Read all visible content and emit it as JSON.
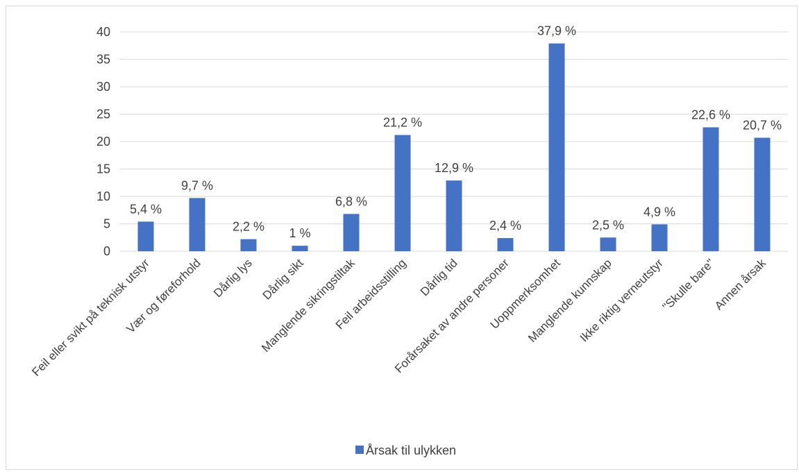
{
  "chart_data": {
    "type": "bar",
    "categories": [
      "Feil eller svikt på teknisk utstyr",
      "Vær og føreforhold",
      "Dårlig lys",
      "Dårlig sikt",
      "Manglende sikringstiltak",
      "Feil arbeidsstilling",
      "Dårlig tid",
      "Forårsaket av andre personer",
      "Uoppmerksomhet",
      "Manglende kunnskap",
      "Ikke riktig verneutstyr",
      "\"Skulle bare\"",
      "Annen årsak"
    ],
    "series": [
      {
        "name": "Årsak til ulykken",
        "values": [
          5.4,
          9.7,
          2.2,
          1,
          6.8,
          21.2,
          12.9,
          2.4,
          37.9,
          2.5,
          4.9,
          22.6,
          20.7
        ],
        "labels": [
          "5,4 %",
          "9,7 %",
          "2,2 %",
          "1 %",
          "6,8 %",
          "21,2 %",
          "12,9 %",
          "2,4 %",
          "37,9 %",
          "2,5 %",
          "4,9 %",
          "22,6 %",
          "20,7 %"
        ]
      }
    ],
    "ylim": [
      0,
      40
    ],
    "yticks": [
      "0",
      "5",
      "10",
      "15",
      "20",
      "25",
      "30",
      "35",
      "40"
    ],
    "grid": true,
    "legend": "bottom",
    "colors": {
      "bar": "#4472c4",
      "grid": "#d9d9d9",
      "text": "#404040"
    }
  }
}
